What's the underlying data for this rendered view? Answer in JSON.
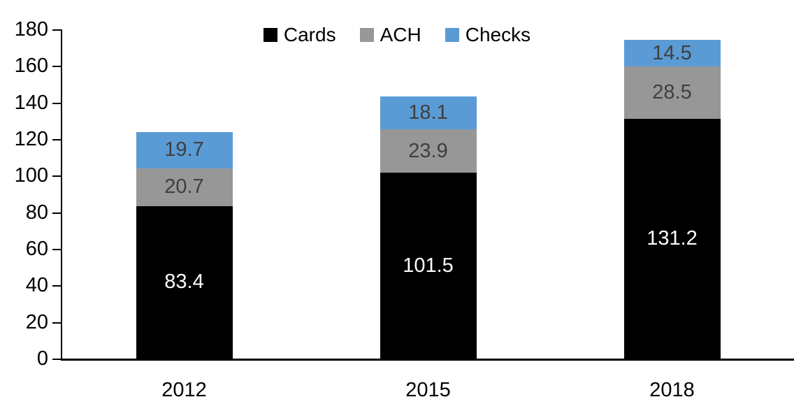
{
  "chart_data": {
    "type": "bar",
    "stacked": true,
    "title": "",
    "xlabel": "",
    "ylabel": "",
    "categories": [
      "2012",
      "2015",
      "2018"
    ],
    "series": [
      {
        "name": "Cards",
        "color": "#000000",
        "label_color": "#ffffff",
        "values": [
          83.4,
          101.5,
          131.2
        ]
      },
      {
        "name": "ACH",
        "color": "#979797",
        "label_color": "#3f3f3f",
        "values": [
          20.7,
          23.9,
          28.5
        ]
      },
      {
        "name": "Checks",
        "color": "#5b9bd5",
        "label_color": "#3f3f3f",
        "values": [
          19.7,
          18.1,
          14.5
        ]
      }
    ],
    "ylim": [
      0,
      180
    ],
    "ytick_step": 20,
    "yticks": [
      0,
      20,
      40,
      60,
      80,
      100,
      120,
      140,
      160,
      180
    ],
    "grid": false,
    "legend_position": "top-center",
    "data_labels": true,
    "axis_color": "#000000"
  }
}
